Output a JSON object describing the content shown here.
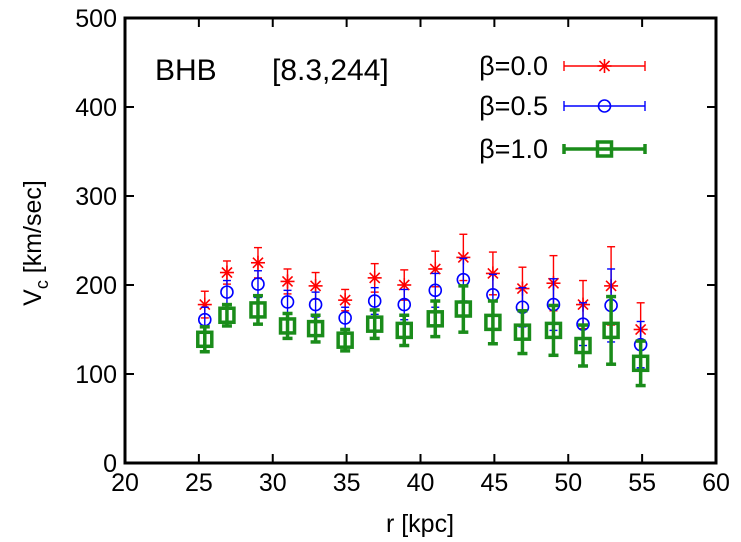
{
  "chart_data": {
    "type": "scatter",
    "annotation": {
      "name": "BHB",
      "range": "[8.3,244]"
    },
    "xlabel": "r [kpc]",
    "ylabel_main": "V",
    "ylabel_sub": "c",
    "ylabel_rest": " [km/sec]",
    "xlim": [
      20,
      60
    ],
    "ylim": [
      0,
      500
    ],
    "xticks": [
      20,
      25,
      30,
      35,
      40,
      45,
      50,
      55,
      60
    ],
    "yticks": [
      0,
      100,
      200,
      300,
      400,
      500
    ],
    "grid": false,
    "legend_position": "top-right",
    "series": [
      {
        "name": "β=0.0",
        "color": "#ff0000",
        "marker": "star",
        "x": [
          25.4,
          26.9,
          29.0,
          31.0,
          32.9,
          34.9,
          36.9,
          38.9,
          41.0,
          42.9,
          44.9,
          46.9,
          49.0,
          51.0,
          52.9,
          54.9
        ],
        "y": [
          178,
          214,
          225,
          204,
          199,
          183,
          208,
          200,
          218,
          231,
          213,
          196,
          202,
          178,
          199,
          150
        ],
        "err": [
          15,
          13,
          17,
          14,
          15,
          12,
          16,
          17,
          20,
          26,
          24,
          24,
          31,
          27,
          44,
          30
        ]
      },
      {
        "name": "β=0.5",
        "color": "#0000ff",
        "marker": "circle",
        "x": [
          25.4,
          26.9,
          29.0,
          31.0,
          32.9,
          34.9,
          36.9,
          38.9,
          41.0,
          42.9,
          44.9,
          46.9,
          49.0,
          51.0,
          52.9,
          54.9
        ],
        "y": [
          161,
          192,
          201,
          181,
          178,
          163,
          182,
          178,
          194,
          206,
          189,
          175,
          178,
          156,
          177,
          133
        ],
        "err": [
          14,
          13,
          15,
          13,
          14,
          12,
          15,
          17,
          19,
          24,
          23,
          22,
          29,
          24,
          41,
          26
        ]
      },
      {
        "name": "β=1.0",
        "color": "#1a8c1a",
        "marker": "square",
        "x": [
          25.4,
          26.9,
          29.0,
          31.0,
          32.9,
          34.9,
          36.9,
          38.9,
          41.0,
          42.9,
          44.9,
          46.9,
          49.0,
          51.0,
          52.9,
          54.9
        ],
        "y": [
          139,
          166,
          172,
          154,
          151,
          138,
          156,
          149,
          162,
          173,
          158,
          147,
          149,
          132,
          149,
          112
        ],
        "err": [
          14,
          12,
          16,
          14,
          15,
          12,
          16,
          17,
          20,
          26,
          24,
          24,
          28,
          23,
          38,
          25
        ]
      }
    ]
  }
}
